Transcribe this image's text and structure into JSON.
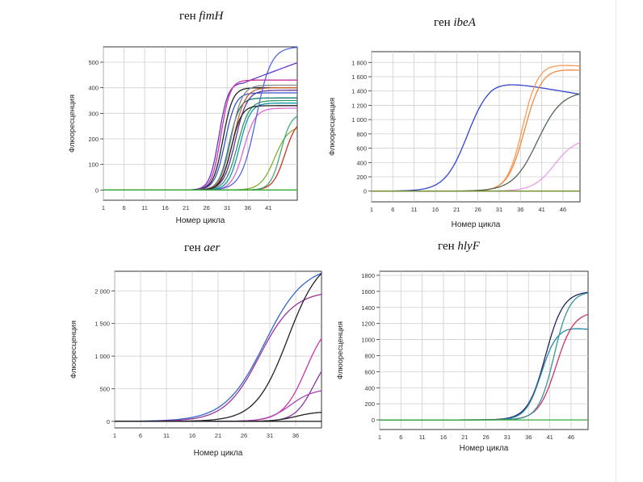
{
  "chart_data": [
    {
      "type": "line",
      "title_prefix": "ген",
      "title_gene": "fimH",
      "xlabel": "Номер цикла",
      "ylabel": "Флюоресценция",
      "xlim": [
        1,
        48
      ],
      "ylim": [
        -40,
        560
      ],
      "x_ticks": [
        1,
        6,
        11,
        16,
        21,
        26,
        31,
        36,
        41
      ],
      "y_ticks": [
        0,
        100,
        200,
        300,
        400,
        500
      ],
      "y_tick_labels": [
        "0",
        "100",
        "200",
        "300",
        "400",
        "500"
      ],
      "series": [
        {
          "color": "#6633cc",
          "mid": 29.0,
          "slope": 0.9,
          "plateau": 420,
          "drift": 6
        },
        {
          "color": "#cc3399",
          "mid": 29.5,
          "slope": 0.9,
          "plateau": 430,
          "drift": 0
        },
        {
          "color": "#222222",
          "mid": 30.0,
          "slope": 0.85,
          "plateau": 400,
          "drift": 0
        },
        {
          "color": "#3355cc",
          "mid": 30.5,
          "slope": 0.8,
          "plateau": 380,
          "drift": 0
        },
        {
          "color": "#117777",
          "mid": 31.5,
          "slope": 0.8,
          "plateau": 360,
          "drift": 0
        },
        {
          "color": "#888888",
          "mid": 32.0,
          "slope": 0.75,
          "plateau": 410,
          "drift": 0
        },
        {
          "color": "#cc6633",
          "mid": 32.5,
          "slope": 0.7,
          "plateau": 400,
          "drift": 0
        },
        {
          "color": "#339966",
          "mid": 33.5,
          "slope": 0.7,
          "plateau": 350,
          "drift": 0
        },
        {
          "color": "#663399",
          "mid": 33.0,
          "slope": 0.7,
          "plateau": 390,
          "drift": 0
        },
        {
          "color": "#dd66cc",
          "mid": 35.0,
          "slope": 0.7,
          "plateau": 320,
          "drift": 0
        },
        {
          "color": "#1199aa",
          "mid": 34.0,
          "slope": 0.75,
          "plateau": 340,
          "drift": 0
        },
        {
          "color": "#222222",
          "mid": 32.0,
          "slope": 0.8,
          "plateau": 330,
          "drift": 0
        },
        {
          "color": "#5566dd",
          "mid": 38.0,
          "slope": 0.55,
          "plateau": 560,
          "drift": 0
        },
        {
          "color": "#88aa33",
          "mid": 42.5,
          "slope": 0.6,
          "plateau": 250,
          "drift": 0
        },
        {
          "color": "#cc3322",
          "mid": 45.0,
          "slope": 0.7,
          "plateau": 280,
          "drift": 0
        },
        {
          "color": "#44aa77",
          "mid": 44.0,
          "slope": 0.8,
          "plateau": 300,
          "drift": 0
        },
        {
          "color": "#33aa33",
          "mid": 80.0,
          "slope": 1.0,
          "plateau": 0,
          "drift": 0
        }
      ]
    },
    {
      "type": "line",
      "title_prefix": "ген",
      "title_gene": "ibeA",
      "xlabel": "Номер цикла",
      "ylabel": "Флюоресценция",
      "xlim": [
        1,
        50
      ],
      "ylim": [
        -150,
        1950
      ],
      "x_ticks": [
        1,
        6,
        11,
        16,
        21,
        26,
        31,
        36,
        41,
        46
      ],
      "y_ticks": [
        0,
        200,
        400,
        600,
        800,
        1000,
        1200,
        1400,
        1600,
        1800
      ],
      "y_tick_labels": [
        "0",
        "200",
        "400",
        "600",
        "800",
        "1 000",
        "1 200",
        "1 400",
        "1 600",
        "1 800"
      ],
      "series": [
        {
          "color": "#3344cc",
          "mid": 23.5,
          "slope": 0.38,
          "plateau": 1560,
          "drift": -10
        },
        {
          "color": "#ff9955",
          "mid": 36.5,
          "slope": 0.55,
          "plateau": 1780,
          "drift": -4
        },
        {
          "color": "#ee8844",
          "mid": 37.0,
          "slope": 0.5,
          "plateau": 1720,
          "drift": -4
        },
        {
          "color": "#556655",
          "mid": 40.0,
          "slope": 0.35,
          "plateau": 1400,
          "drift": 0
        },
        {
          "color": "#ee99ee",
          "mid": 44.0,
          "slope": 0.4,
          "plateau": 740,
          "drift": 0
        },
        {
          "color": "#6b8e23",
          "mid": 80.0,
          "slope": 1.0,
          "plateau": 0,
          "drift": 0
        }
      ]
    },
    {
      "type": "line",
      "title_prefix": "ген",
      "title_gene": "aer",
      "xlabel": "Номер цикла",
      "ylabel": "Флюоресценция",
      "xlim": [
        1,
        41
      ],
      "ylim": [
        -100,
        2300
      ],
      "x_ticks": [
        1,
        6,
        11,
        16,
        21,
        26,
        31,
        36
      ],
      "y_ticks": [
        0,
        500,
        1000,
        1500,
        2000
      ],
      "y_tick_labels": [
        "0",
        "500",
        "1 000",
        "1 500",
        "2 000"
      ],
      "series": [
        {
          "color": "#3366cc",
          "mid": 30.0,
          "slope": 0.26,
          "plateau": 2400,
          "drift": 0
        },
        {
          "color": "#993399",
          "mid": 29.0,
          "slope": 0.3,
          "plateau": 2000,
          "drift": 0
        },
        {
          "color": "#222222",
          "mid": 34.5,
          "slope": 0.32,
          "plateau": 2550,
          "drift": 0
        },
        {
          "color": "#cc33aa",
          "mid": 38.0,
          "slope": 0.45,
          "plateau": 1600,
          "drift": 0
        },
        {
          "color": "#8833aa",
          "mid": 39.5,
          "slope": 0.55,
          "plateau": 1100,
          "drift": 0
        },
        {
          "color": "#aa44bb",
          "mid": 35.0,
          "slope": 0.45,
          "plateau": 500,
          "drift": 0
        },
        {
          "color": "#222222",
          "mid": 36.0,
          "slope": 0.5,
          "plateau": 150,
          "drift": 0
        },
        {
          "color": "#111111",
          "mid": 80.0,
          "slope": 1.0,
          "plateau": 0,
          "drift": 0
        }
      ]
    },
    {
      "type": "line",
      "title_prefix": "ген",
      "title_gene": "hlyF",
      "xlabel": "Номер цикла",
      "ylabel": "Флюоресценция",
      "xlim": [
        1,
        50
      ],
      "ylim": [
        -120,
        1850
      ],
      "x_ticks": [
        1,
        6,
        11,
        16,
        21,
        26,
        31,
        36,
        41,
        46
      ],
      "y_ticks": [
        0,
        200,
        400,
        600,
        800,
        1000,
        1200,
        1400,
        1600,
        1800
      ],
      "y_tick_labels": [
        "0",
        "200",
        "400",
        "600",
        "800",
        "1000",
        "1200",
        "1400",
        "1600",
        "1800"
      ],
      "series": [
        {
          "color": "#222266",
          "mid": 40.0,
          "slope": 0.48,
          "plateau": 1600,
          "drift": 0
        },
        {
          "color": "#2288aa",
          "mid": 39.0,
          "slope": 0.55,
          "plateau": 1160,
          "drift": -6
        },
        {
          "color": "#cc3366",
          "mid": 42.5,
          "slope": 0.48,
          "plateau": 1350,
          "drift": 0
        },
        {
          "color": "#339999",
          "mid": 42.0,
          "slope": 0.55,
          "plateau": 1600,
          "drift": 0
        },
        {
          "color": "#33aa33",
          "mid": 80.0,
          "slope": 1.0,
          "plateau": 0,
          "drift": 0
        }
      ]
    }
  ]
}
